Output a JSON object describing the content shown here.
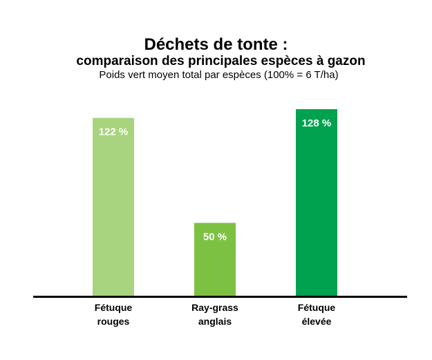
{
  "title": "Déchets de tonte :",
  "subtitle": "comparaison des principales espèces à gazon",
  "caption": "Poids vert moyen total par espèces (100% = 6 T/ha)",
  "colors": {
    "axis": "#000000",
    "label": "#ffffff"
  },
  "chart_data": {
    "type": "bar",
    "title": "Déchets de tonte : comparaison des principales espèces à gazon",
    "subtitle": "Poids vert moyen total par espèces (100% = 6 T/ha)",
    "categories": [
      [
        "Fétuque",
        "rouges"
      ],
      [
        "Ray-grass",
        "anglais"
      ],
      [
        "Fétuque",
        "élevée"
      ]
    ],
    "values": [
      122,
      50,
      128
    ],
    "value_labels": [
      "122 %",
      "50 %",
      "128 %"
    ],
    "bar_colors": [
      "#a9d47f",
      "#7dc142",
      "#00a14f"
    ],
    "unit": "%",
    "ylim": [
      0,
      128
    ],
    "grid": false,
    "legend": "none"
  }
}
